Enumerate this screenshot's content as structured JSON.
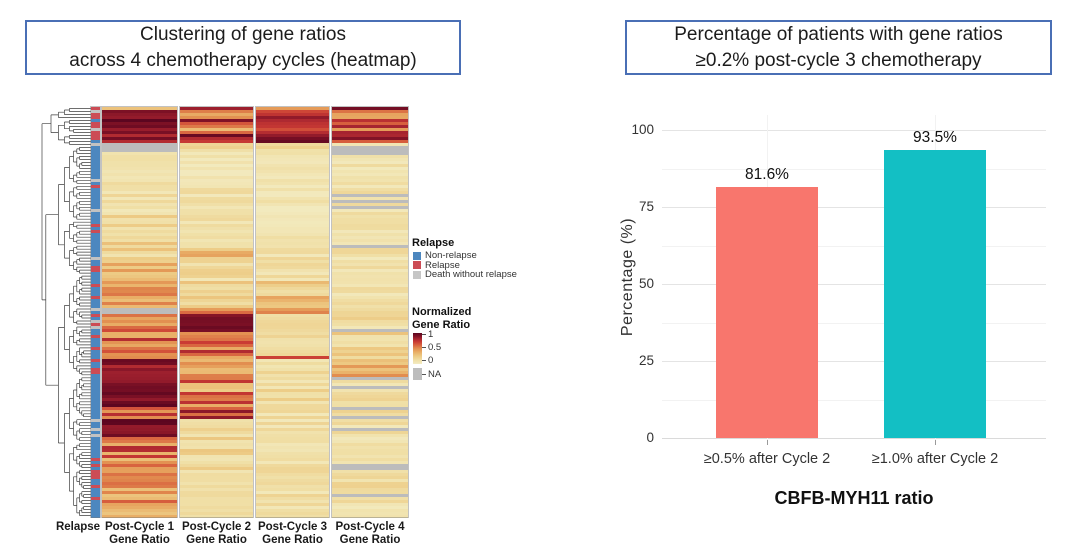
{
  "colors": {
    "box_border": "#4A6FB5",
    "grid_major": "#E4E4E4",
    "grid_minor": "#F2F2F2",
    "baseline": "#DADADA",
    "dendrogram_stroke": "#3F3F3F"
  },
  "left_panel": {
    "title_line1": "Clustering of gene ratios",
    "title_line2": "across 4 chemotherapy cycles (heatmap)",
    "relapse_axis_label": "Relapse",
    "col_labels": [
      [
        "Post-Cycle 1",
        "Gene Ratio"
      ],
      [
        "Post-Cycle 2",
        "Gene Ratio"
      ],
      [
        "Post-Cycle 3",
        "Gene Ratio"
      ],
      [
        "Post-Cycle 4",
        "Gene Ratio"
      ]
    ],
    "legend_relapse": {
      "title": "Relapse",
      "items": [
        {
          "label": "Non-relapse",
          "color": "#4C87BF"
        },
        {
          "label": "Relapse",
          "color": "#CC4C55"
        },
        {
          "label": "Death without relapse",
          "color": "#C6C6C6"
        }
      ]
    },
    "legend_ratio": {
      "title_line1": "Normalized",
      "title_line2": "Gene Ratio",
      "ticks": [
        "1",
        "0.5",
        "0"
      ],
      "na_label": "NA",
      "na_color": "#BDBDBD"
    }
  },
  "right_panel": {
    "title_line1": "Percentage of patients with gene ratios",
    "title_line2": "≥0.2% post-cycle 3 chemotherapy"
  },
  "chart_data": [
    {
      "type": "heatmap",
      "title": "Clustering of gene ratios across 4 chemotherapy cycles (heatmap)",
      "annotation_column": "Relapse",
      "columns": [
        "Post-Cycle 1 Gene Ratio",
        "Post-Cycle 2 Gene Ratio",
        "Post-Cycle 3 Gene Ratio",
        "Post-Cycle 4 Gene Ratio"
      ],
      "n_rows": 137,
      "value_scale": {
        "min": 0,
        "max": 1,
        "legend_ticks": [
          1,
          0.5,
          0
        ],
        "na_label": "NA"
      },
      "na_color": "#BCBCBC",
      "relapse_colors": {
        "B": "#4C87BF",
        "R": "#CC4C55",
        "G": "#C2C2C2"
      },
      "colormap_stops": [
        [
          0.0,
          "#F3ECC3"
        ],
        [
          0.12,
          "#F0DFA6"
        ],
        [
          0.25,
          "#EDCB85"
        ],
        [
          0.38,
          "#E9AF67"
        ],
        [
          0.5,
          "#E28F50"
        ],
        [
          0.62,
          "#D75F3E"
        ],
        [
          0.72,
          "#C93A33"
        ],
        [
          0.82,
          "#A62430"
        ],
        [
          0.9,
          "#801226"
        ],
        [
          1.0,
          "#5C0620"
        ]
      ],
      "row_blocks": [
        {
          "n": 1,
          "rel": "R",
          "c": [
            [
              0.35,
              0.1
            ],
            [
              0.75,
              0.12
            ],
            [
              0.45,
              0.12
            ],
            [
              0.95,
              0.05
            ]
          ]
        },
        {
          "n": 8,
          "rel": "GRRBRRGR",
          "c": [
            [
              0.9,
              0.12
            ],
            [
              0.62,
              0.3
            ],
            [
              0.78,
              0.22
            ],
            [
              0.55,
              0.3
            ]
          ]
        },
        {
          "n": 3,
          "rel": "RRB",
          "c": [
            [
              0.88,
              0.1
            ],
            [
              0.82,
              0.18
            ],
            [
              0.93,
              0.07
            ],
            [
              0.72,
              0.2
            ]
          ]
        },
        {
          "n": 3,
          "rel": "GBB",
          "c": [
            [
              -1,
              0
            ],
            [
              0.14,
              0.08
            ],
            [
              0.18,
              0.12
            ],
            [
              0.12,
              0.08
            ]
          ],
          "nap": [
            0,
            0,
            0,
            0.4
          ]
        },
        {
          "n": 12,
          "rel": [
            0.78,
            0.13,
            0.09
          ],
          "c": [
            [
              0.09,
              0.07
            ],
            [
              0.08,
              0.06
            ],
            [
              0.07,
              0.05
            ],
            [
              0.09,
              0.07
            ]
          ],
          "nap": [
            0,
            0,
            0,
            0.05
          ]
        },
        {
          "n": 8,
          "rel": [
            0.8,
            0.1,
            0.1
          ],
          "c": [
            [
              0.12,
              0.09
            ],
            [
              0.1,
              0.07
            ],
            [
              0.08,
              0.06
            ],
            [
              0.1,
              0.08
            ]
          ],
          "nap": [
            0,
            0,
            0,
            0.2
          ]
        },
        {
          "n": 10,
          "rel": [
            0.8,
            0.12,
            0.08
          ],
          "c": [
            [
              0.16,
              0.11
            ],
            [
              0.12,
              0.09
            ],
            [
              0.1,
              0.07
            ],
            [
              0.12,
              0.09
            ]
          ]
        },
        {
          "n": 5,
          "rel": [
            0.7,
            0.2,
            0.1
          ],
          "c": [
            [
              0.2,
              0.12
            ],
            [
              0.3,
              0.25
            ],
            [
              0.1,
              0.07
            ],
            [
              0.12,
              0.08
            ]
          ],
          "nap": [
            0,
            0,
            0,
            0.45
          ]
        },
        {
          "n": 8,
          "rel": [
            0.75,
            0.15,
            0.1
          ],
          "c": [
            [
              0.34,
              0.14
            ],
            [
              0.15,
              0.1
            ],
            [
              0.12,
              0.08
            ],
            [
              0.1,
              0.07
            ]
          ]
        },
        {
          "n": 9,
          "rel": [
            0.8,
            0.1,
            0.1
          ],
          "c": [
            [
              0.45,
              0.16
            ],
            [
              0.2,
              0.12
            ],
            [
              0.28,
              0.2
            ],
            [
              0.1,
              0.07
            ]
          ],
          "nap": [
            0,
            0,
            0,
            0.12
          ]
        },
        {
          "n": 2,
          "rel": "GB",
          "c": [
            [
              -1,
              0
            ],
            [
              0.55,
              0.15
            ],
            [
              0.4,
              0.15
            ],
            [
              0.12,
              0.08
            ]
          ]
        },
        {
          "n": 6,
          "rel": [
            0.6,
            0.3,
            0.1
          ],
          "c": [
            [
              0.5,
              0.2
            ],
            [
              0.9,
              0.1
            ],
            [
              0.15,
              0.1
            ],
            [
              0.14,
              0.1
            ]
          ],
          "nap": [
            0,
            0,
            0,
            0.35
          ]
        },
        {
          "n": 8,
          "rel": [
            0.7,
            0.2,
            0.1
          ],
          "c": [
            [
              0.55,
              0.25
            ],
            [
              0.58,
              0.22
            ],
            [
              0.12,
              0.09
            ],
            [
              0.18,
              0.12
            ]
          ]
        },
        {
          "n": 1,
          "rel": "B",
          "c": [
            [
              0.5,
              0.1
            ],
            [
              0.45,
              0.1
            ],
            [
              0.75,
              0.08
            ],
            [
              0.2,
              0.1
            ]
          ]
        },
        {
          "n": 6,
          "rel": [
            0.6,
            0.3,
            0.1
          ],
          "c": [
            [
              0.88,
              0.1
            ],
            [
              0.45,
              0.15
            ],
            [
              0.12,
              0.09
            ],
            [
              0.38,
              0.2
            ]
          ]
        },
        {
          "n": 10,
          "rel": [
            0.65,
            0.25,
            0.1
          ],
          "c": [
            [
              0.93,
              0.08
            ],
            [
              0.5,
              0.3
            ],
            [
              0.15,
              0.11
            ],
            [
              0.14,
              0.1
            ]
          ],
          "nap": [
            0,
            0,
            0,
            0.22
          ]
        },
        {
          "n": 4,
          "rel": [
            0.7,
            0.2,
            0.1
          ],
          "c": [
            [
              0.7,
              0.25
            ],
            [
              0.72,
              0.2
            ],
            [
              0.12,
              0.09
            ],
            [
              0.14,
              0.09
            ]
          ],
          "nap": [
            0,
            0,
            0,
            0.45
          ]
        },
        {
          "n": 6,
          "rel": [
            0.8,
            0.1,
            0.1
          ],
          "c": [
            [
              0.92,
              0.09
            ],
            [
              0.15,
              0.1
            ],
            [
              0.11,
              0.08
            ],
            [
              0.12,
              0.09
            ]
          ],
          "nap": [
            0,
            0,
            0,
            0.15
          ]
        },
        {
          "n": 7,
          "rel": [
            0.75,
            0.15,
            0.1
          ],
          "c": [
            [
              0.6,
              0.25
            ],
            [
              0.2,
              0.14
            ],
            [
              0.1,
              0.07
            ],
            [
              0.1,
              0.07
            ]
          ]
        },
        {
          "n": 6,
          "rel": [
            0.7,
            0.2,
            0.1
          ],
          "c": [
            [
              0.45,
              0.2
            ],
            [
              0.15,
              0.1
            ],
            [
              0.15,
              0.12
            ],
            [
              0.11,
              0.08
            ]
          ],
          "nap": [
            0,
            0,
            0,
            0.3
          ]
        },
        {
          "n": 6,
          "rel": [
            0.75,
            0.15,
            0.1
          ],
          "c": [
            [
              0.42,
              0.2
            ],
            [
              0.12,
              0.08
            ],
            [
              0.1,
              0.07
            ],
            [
              0.12,
              0.09
            ]
          ]
        },
        {
          "n": 4,
          "rel": "BRBB",
          "c": [
            [
              0.5,
              0.3
            ],
            [
              0.1,
              0.07
            ],
            [
              0.12,
              0.09
            ],
            [
              0.11,
              0.08
            ]
          ],
          "nap": [
            0,
            0,
            0,
            0.3
          ]
        },
        {
          "n": 4,
          "rel": [
            0.7,
            0.2,
            0.1
          ],
          "c": [
            [
              0.38,
              0.15
            ],
            [
              0.11,
              0.08
            ],
            [
              0.1,
              0.07
            ],
            [
              0.1,
              0.07
            ]
          ]
        }
      ],
      "dendrogram": {
        "first_split": 13,
        "seed": 987654321
      }
    },
    {
      "type": "bar",
      "title": "Percentage of patients with gene ratios ≥0.2% post-cycle 3 chemotherapy",
      "categories": [
        "≥0.5% after Cycle 2",
        "≥1.0% after Cycle 2"
      ],
      "values": [
        81.6,
        93.5
      ],
      "value_labels": [
        "81.6%",
        "93.5%"
      ],
      "bar_colors": [
        "#F8766D",
        "#13BFC4"
      ],
      "xlabel": "CBFB-MYH11 ratio",
      "ylabel": "Percentage (%)",
      "ylim": [
        0,
        100
      ],
      "yticks": [
        0,
        25,
        50,
        75,
        100
      ],
      "grid": true,
      "legend": "none"
    }
  ]
}
